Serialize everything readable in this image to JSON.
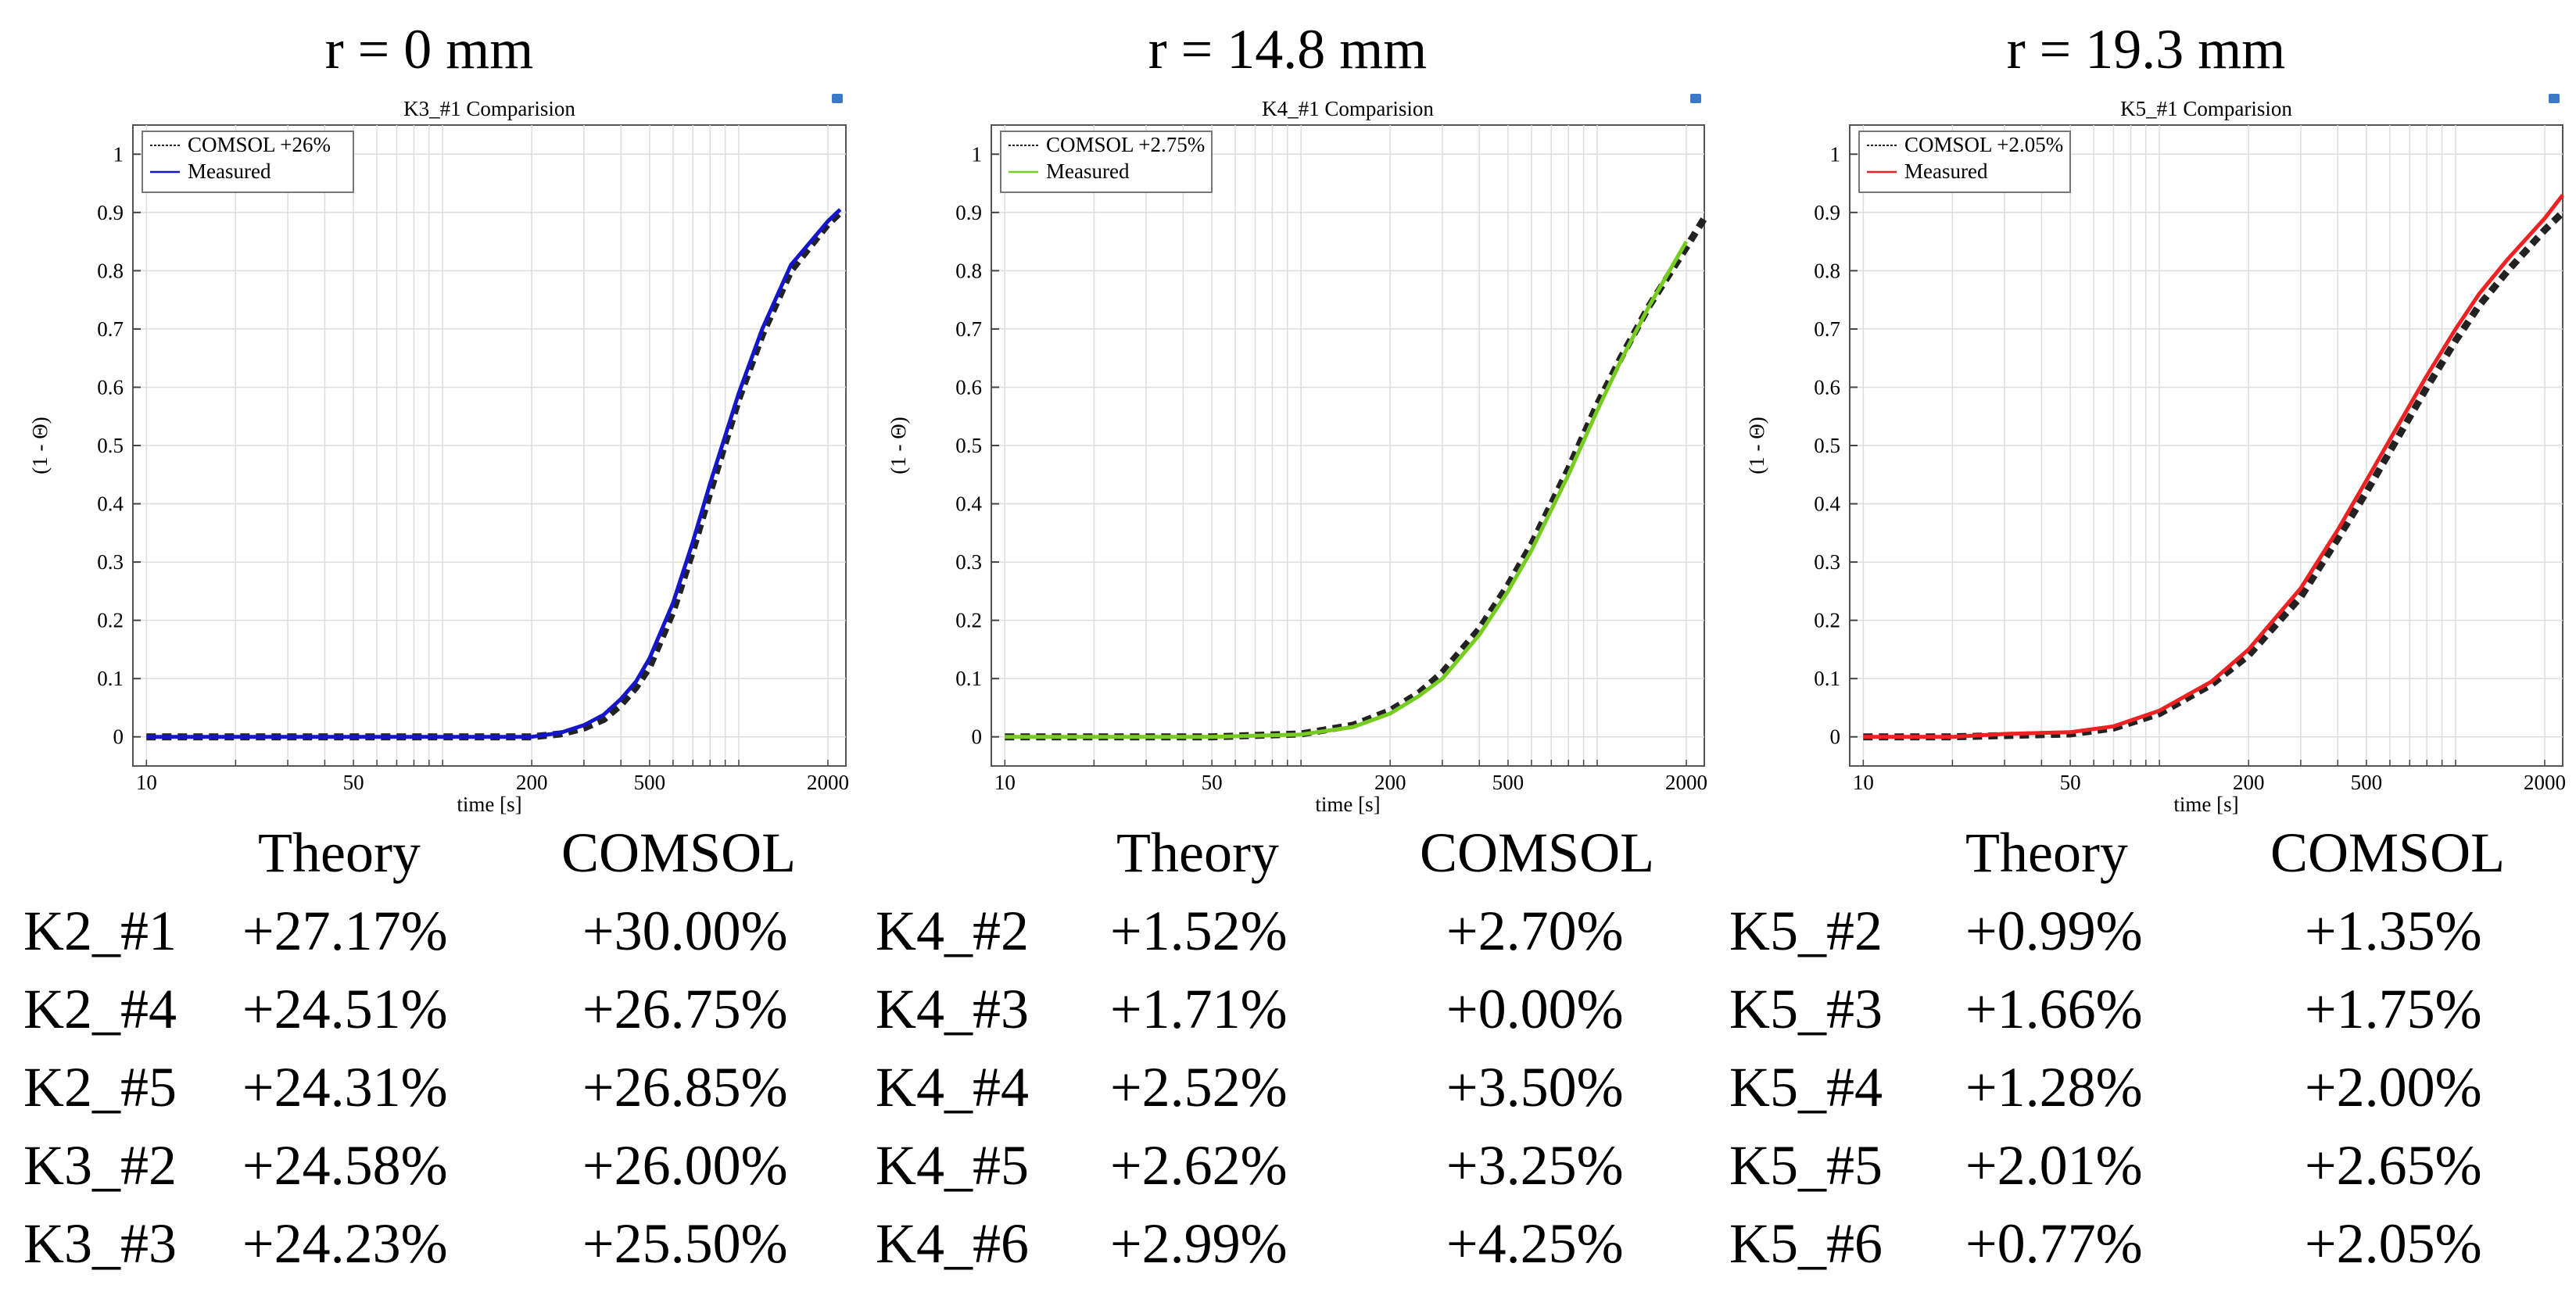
{
  "panels": [
    {
      "heading": "r = 0 mm",
      "chart_data": {
        "type": "line",
        "title": "K3_#1 Comparision",
        "xlabel": "time [s]",
        "ylabel": "(1 - Θ)",
        "xscale": "log",
        "xlim": [
          9,
          2300
        ],
        "ylim": [
          -0.05,
          1.05
        ],
        "xticks": [
          10,
          50,
          200,
          500,
          2000
        ],
        "yticks": [
          0,
          0.1,
          0.2,
          0.3,
          0.4,
          0.5,
          0.6,
          0.7,
          0.8,
          0.9,
          1
        ],
        "grid": true,
        "legend": "top-left",
        "series": [
          {
            "name": "COMSOL +26%",
            "style": "dashed",
            "color": "#222222",
            "x": [
              10,
              20,
              50,
              100,
              200,
              250,
              300,
              350,
              400,
              450,
              500,
              600,
              700,
              800,
              1000,
              1200,
              1500,
              2000,
              2200
            ],
            "y": [
              0,
              0,
              0,
              0,
              0,
              0.005,
              0.015,
              0.03,
              0.055,
              0.085,
              0.12,
              0.215,
              0.32,
              0.42,
              0.58,
              0.69,
              0.8,
              0.88,
              0.9
            ]
          },
          {
            "name": "Measured",
            "style": "solid",
            "color": "#1515cc",
            "x": [
              10,
              20,
              50,
              100,
              200,
              250,
              300,
              350,
              400,
              450,
              500,
              600,
              700,
              800,
              1000,
              1200,
              1500,
              2000,
              2200
            ],
            "y": [
              0,
              0,
              0,
              0,
              0,
              0.007,
              0.02,
              0.038,
              0.065,
              0.095,
              0.135,
              0.23,
              0.335,
              0.435,
              0.59,
              0.7,
              0.81,
              0.885,
              0.905
            ]
          }
        ]
      },
      "table": {
        "headers": [
          "Theory",
          "COMSOL"
        ],
        "rows": [
          [
            "K2_#1",
            "+27.17%",
            "+30.00%"
          ],
          [
            "K2_#4",
            "+24.51%",
            "+26.75%"
          ],
          [
            "K2_#5",
            "+24.31%",
            "+26.85%"
          ],
          [
            "K3_#2",
            "+24.58%",
            "+26.00%"
          ],
          [
            "K3_#3",
            "+24.23%",
            "+25.50%"
          ]
        ]
      }
    },
    {
      "heading": "r = 14.8 mm",
      "chart_data": {
        "type": "line",
        "title": "K4_#1 Comparision",
        "xlabel": "time [s]",
        "ylabel": "(1 - Θ)",
        "xscale": "log",
        "xlim": [
          9,
          2300
        ],
        "ylim": [
          -0.05,
          1.05
        ],
        "xticks": [
          10,
          50,
          200,
          500,
          2000
        ],
        "yticks": [
          0,
          0.1,
          0.2,
          0.3,
          0.4,
          0.5,
          0.6,
          0.7,
          0.8,
          0.9,
          1
        ],
        "grid": true,
        "legend": "top-left",
        "series": [
          {
            "name": "COMSOL +2.75%",
            "style": "dashed",
            "color": "#222222",
            "x": [
              10,
              20,
              50,
              100,
              150,
              200,
              250,
              300,
              400,
              500,
              600,
              800,
              1000,
              1200,
              1500,
              2000,
              2300
            ],
            "y": [
              0,
              0,
              0,
              0.005,
              0.02,
              0.045,
              0.075,
              0.11,
              0.185,
              0.26,
              0.33,
              0.46,
              0.57,
              0.65,
              0.74,
              0.84,
              0.89
            ]
          },
          {
            "name": "Measured",
            "style": "solid",
            "color": "#77cc22",
            "x": [
              10,
              20,
              50,
              100,
              150,
              200,
              250,
              300,
              400,
              500,
              600,
              800,
              1000,
              1200,
              1500,
              2000
            ],
            "y": [
              0,
              0,
              0,
              0.004,
              0.017,
              0.04,
              0.07,
              0.1,
              0.175,
              0.25,
              0.32,
              0.45,
              0.56,
              0.645,
              0.74,
              0.85
            ]
          }
        ]
      },
      "table": {
        "headers": [
          "Theory",
          "COMSOL"
        ],
        "rows": [
          [
            "K4_#2",
            "+1.52%",
            "+2.70%"
          ],
          [
            "K4_#3",
            "+1.71%",
            "+0.00%"
          ],
          [
            "K4_#4",
            "+2.52%",
            "+3.50%"
          ],
          [
            "K4_#5",
            "+2.62%",
            "+3.25%"
          ],
          [
            "K4_#6",
            "+2.99%",
            "+4.25%"
          ]
        ]
      }
    },
    {
      "heading": "r = 19.3 mm",
      "chart_data": {
        "type": "line",
        "title": "K5_#1 Comparision",
        "xlabel": "time [s]",
        "ylabel": "(1 - Θ)",
        "xscale": "log",
        "xlim": [
          9,
          2300
        ],
        "ylim": [
          -0.05,
          1.05
        ],
        "xticks": [
          10,
          50,
          200,
          500,
          2000
        ],
        "yticks": [
          0,
          0.1,
          0.2,
          0.3,
          0.4,
          0.5,
          0.6,
          0.7,
          0.8,
          0.9,
          1
        ],
        "grid": true,
        "legend": "top-left",
        "series": [
          {
            "name": "COMSOL +2.05%",
            "style": "dashed",
            "color": "#222222",
            "x": [
              10,
              20,
              50,
              70,
              100,
              150,
              200,
              300,
              400,
              500,
              600,
              800,
              1000,
              1200,
              1500,
              2000,
              2300
            ],
            "y": [
              0,
              0,
              0.005,
              0.015,
              0.04,
              0.09,
              0.14,
              0.24,
              0.34,
              0.42,
              0.49,
              0.6,
              0.68,
              0.74,
              0.8,
              0.87,
              0.9
            ]
          },
          {
            "name": "Measured",
            "style": "solid",
            "color": "#ee2222",
            "x": [
              10,
              20,
              30,
              50,
              70,
              100,
              150,
              200,
              300,
              400,
              500,
              600,
              800,
              1000,
              1200,
              1500,
              2000,
              2300
            ],
            "y": [
              0,
              0,
              0.005,
              0.008,
              0.018,
              0.045,
              0.095,
              0.15,
              0.255,
              0.355,
              0.44,
              0.51,
              0.62,
              0.7,
              0.76,
              0.82,
              0.89,
              0.93
            ]
          }
        ]
      },
      "table": {
        "headers": [
          "Theory",
          "COMSOL"
        ],
        "rows": [
          [
            "K5_#2",
            "+0.99%",
            "+1.35%"
          ],
          [
            "K5_#3",
            "+1.66%",
            "+1.75%"
          ],
          [
            "K5_#4",
            "+1.28%",
            "+2.00%"
          ],
          [
            "K5_#5",
            "+2.01%",
            "+2.65%"
          ],
          [
            "K5_#6",
            "+0.77%",
            "+2.05%"
          ]
        ]
      }
    }
  ]
}
